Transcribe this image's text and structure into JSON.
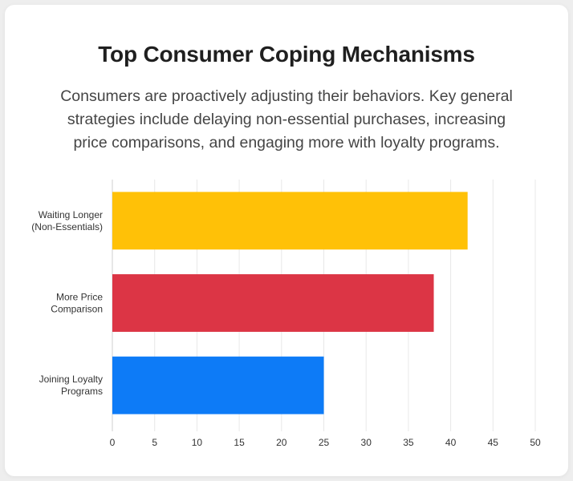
{
  "header": {
    "title": "Top Consumer Coping Mechanisms",
    "subtitle": "Consumers are proactively adjusting their behaviors. Key general strategies include delaying non-essential purchases, increasing price comparisons, and engaging more with loyalty programs."
  },
  "chart_data": {
    "type": "bar",
    "orientation": "horizontal",
    "categories": [
      [
        "Waiting Longer",
        "(Non-Essentials)"
      ],
      [
        "More Price",
        "Comparison"
      ],
      [
        "Joining Loyalty",
        "Programs"
      ]
    ],
    "values": [
      42,
      38,
      25
    ],
    "colors": [
      "#ffc107",
      "#dc3545",
      "#0d7bf7"
    ],
    "xlim": [
      0,
      50
    ],
    "xticks": [
      0,
      5,
      10,
      15,
      20,
      25,
      30,
      35,
      40,
      45,
      50
    ],
    "grid": true,
    "legend": "none"
  }
}
